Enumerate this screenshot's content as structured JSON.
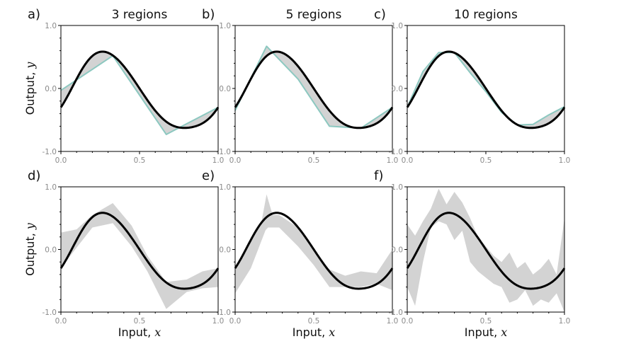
{
  "chart_data": [
    {
      "panel": "a)",
      "title": "3 regions",
      "type": "line",
      "shading": "between",
      "xlim": [
        0,
        1
      ],
      "ylim": [
        -1,
        1
      ],
      "xticks": [
        "0.0",
        "0.5",
        "1.0"
      ],
      "yticks": [
        "1.0",
        "0.0",
        "-1.0"
      ],
      "ylabel": "Output,",
      "ylabel_var": "y",
      "xlabel": "",
      "xlabel_var": "",
      "approx": {
        "x": [
          0,
          0.33,
          0.67,
          1.0
        ],
        "y": [
          -0.03,
          0.52,
          -0.73,
          -0.3
        ]
      }
    },
    {
      "panel": "b)",
      "title": "5 regions",
      "type": "line",
      "shading": "between",
      "xlim": [
        0,
        1
      ],
      "ylim": [
        -1,
        1
      ],
      "xticks": [
        "0.0",
        "0.5",
        "1.0"
      ],
      "yticks": [
        "1.0",
        "0.0",
        "-1.0"
      ],
      "ylabel": "",
      "ylabel_var": "",
      "xlabel": "",
      "xlabel_var": "",
      "approx": {
        "x": [
          0,
          0.2,
          0.4,
          0.6,
          0.8,
          1.0
        ],
        "y": [
          -0.35,
          0.67,
          0.15,
          -0.6,
          -0.63,
          -0.3
        ]
      }
    },
    {
      "panel": "c)",
      "title": "10 regions",
      "type": "line",
      "shading": "between",
      "xlim": [
        0,
        1
      ],
      "ylim": [
        -1,
        1
      ],
      "xticks": [
        "0.0",
        "0.5",
        "1.0"
      ],
      "yticks": [
        "1.0",
        "0.0",
        "-1.0"
      ],
      "ylabel": "",
      "ylabel_var": "",
      "xlabel": "",
      "xlabel_var": "",
      "approx": {
        "x": [
          0,
          0.1,
          0.2,
          0.3,
          0.4,
          0.5,
          0.6,
          0.7,
          0.8,
          0.9,
          1.0
        ],
        "y": [
          -0.3,
          0.27,
          0.57,
          0.57,
          0.25,
          -0.05,
          -0.38,
          -0.58,
          -0.57,
          -0.42,
          -0.29
        ]
      }
    },
    {
      "panel": "d)",
      "title": "",
      "type": "area",
      "xlim": [
        0,
        1
      ],
      "ylim": [
        -1,
        1
      ],
      "xticks": [
        "0.0",
        "0.5",
        "1.0"
      ],
      "yticks": [
        "1.0",
        "0.0",
        "-1.0"
      ],
      "ylabel": "Output,",
      "ylabel_var": "y",
      "xlabel": "Input,",
      "xlabel_var": "x",
      "band": {
        "x": [
          0,
          0.1,
          0.2,
          0.33,
          0.45,
          0.55,
          0.67,
          0.8,
          0.9,
          1.0
        ],
        "upper": [
          0.27,
          0.32,
          0.55,
          0.74,
          0.38,
          -0.1,
          -0.52,
          -0.48,
          -0.35,
          -0.3
        ],
        "lower": [
          -0.3,
          0.03,
          0.35,
          0.42,
          0.05,
          -0.35,
          -0.95,
          -0.68,
          -0.62,
          -0.6
        ]
      }
    },
    {
      "panel": "e)",
      "title": "",
      "type": "area",
      "xlim": [
        0,
        1
      ],
      "ylim": [
        -1,
        1
      ],
      "xticks": [
        "0.0",
        "0.5",
        "1.0"
      ],
      "yticks": [
        "1.0",
        "0.0",
        "-1.0"
      ],
      "ylabel": "",
      "ylabel_var": "",
      "xlabel": "Input,",
      "xlabel_var": "x",
      "band": {
        "x": [
          0,
          0.1,
          0.2,
          0.28,
          0.4,
          0.5,
          0.6,
          0.7,
          0.8,
          0.9,
          1.0
        ],
        "upper": [
          -0.3,
          0.15,
          0.55,
          0.55,
          0.35,
          0.0,
          -0.32,
          -0.42,
          -0.35,
          -0.38,
          0.0
        ],
        "lower": [
          -0.7,
          -0.3,
          0.35,
          0.35,
          0.05,
          -0.25,
          -0.6,
          -0.6,
          -0.6,
          -0.55,
          -0.65
        ]
      },
      "band_spike": {
        "x": [
          0.15,
          0.2,
          0.25
        ],
        "y": [
          0.2,
          0.88,
          0.45
        ]
      }
    },
    {
      "panel": "f)",
      "title": "",
      "type": "area",
      "xlim": [
        0,
        1
      ],
      "ylim": [
        -1,
        1
      ],
      "xticks": [
        "0.0",
        "0.5",
        "1.0"
      ],
      "yticks": [
        "1.0",
        "0.0",
        "-1.0"
      ],
      "ylabel": "",
      "ylabel_var": "",
      "xlabel": "Input,",
      "xlabel_var": "x",
      "band": {
        "x": [
          0,
          0.05,
          0.1,
          0.15,
          0.2,
          0.25,
          0.3,
          0.35,
          0.4,
          0.45,
          0.5,
          0.55,
          0.6,
          0.65,
          0.7,
          0.75,
          0.8,
          0.85,
          0.9,
          0.95,
          1.0
        ],
        "upper": [
          0.4,
          0.22,
          0.45,
          0.65,
          0.97,
          0.72,
          0.92,
          0.75,
          0.5,
          0.2,
          0.05,
          -0.1,
          -0.2,
          -0.05,
          -0.3,
          -0.2,
          -0.4,
          -0.3,
          -0.15,
          -0.4,
          0.5
        ],
        "lower": [
          -0.6,
          -0.9,
          -0.2,
          0.35,
          0.45,
          0.4,
          0.15,
          0.3,
          -0.2,
          -0.35,
          -0.45,
          -0.55,
          -0.6,
          -0.85,
          -0.8,
          -0.65,
          -0.9,
          -0.8,
          -0.85,
          -0.7,
          -1.0
        ]
      }
    }
  ]
}
